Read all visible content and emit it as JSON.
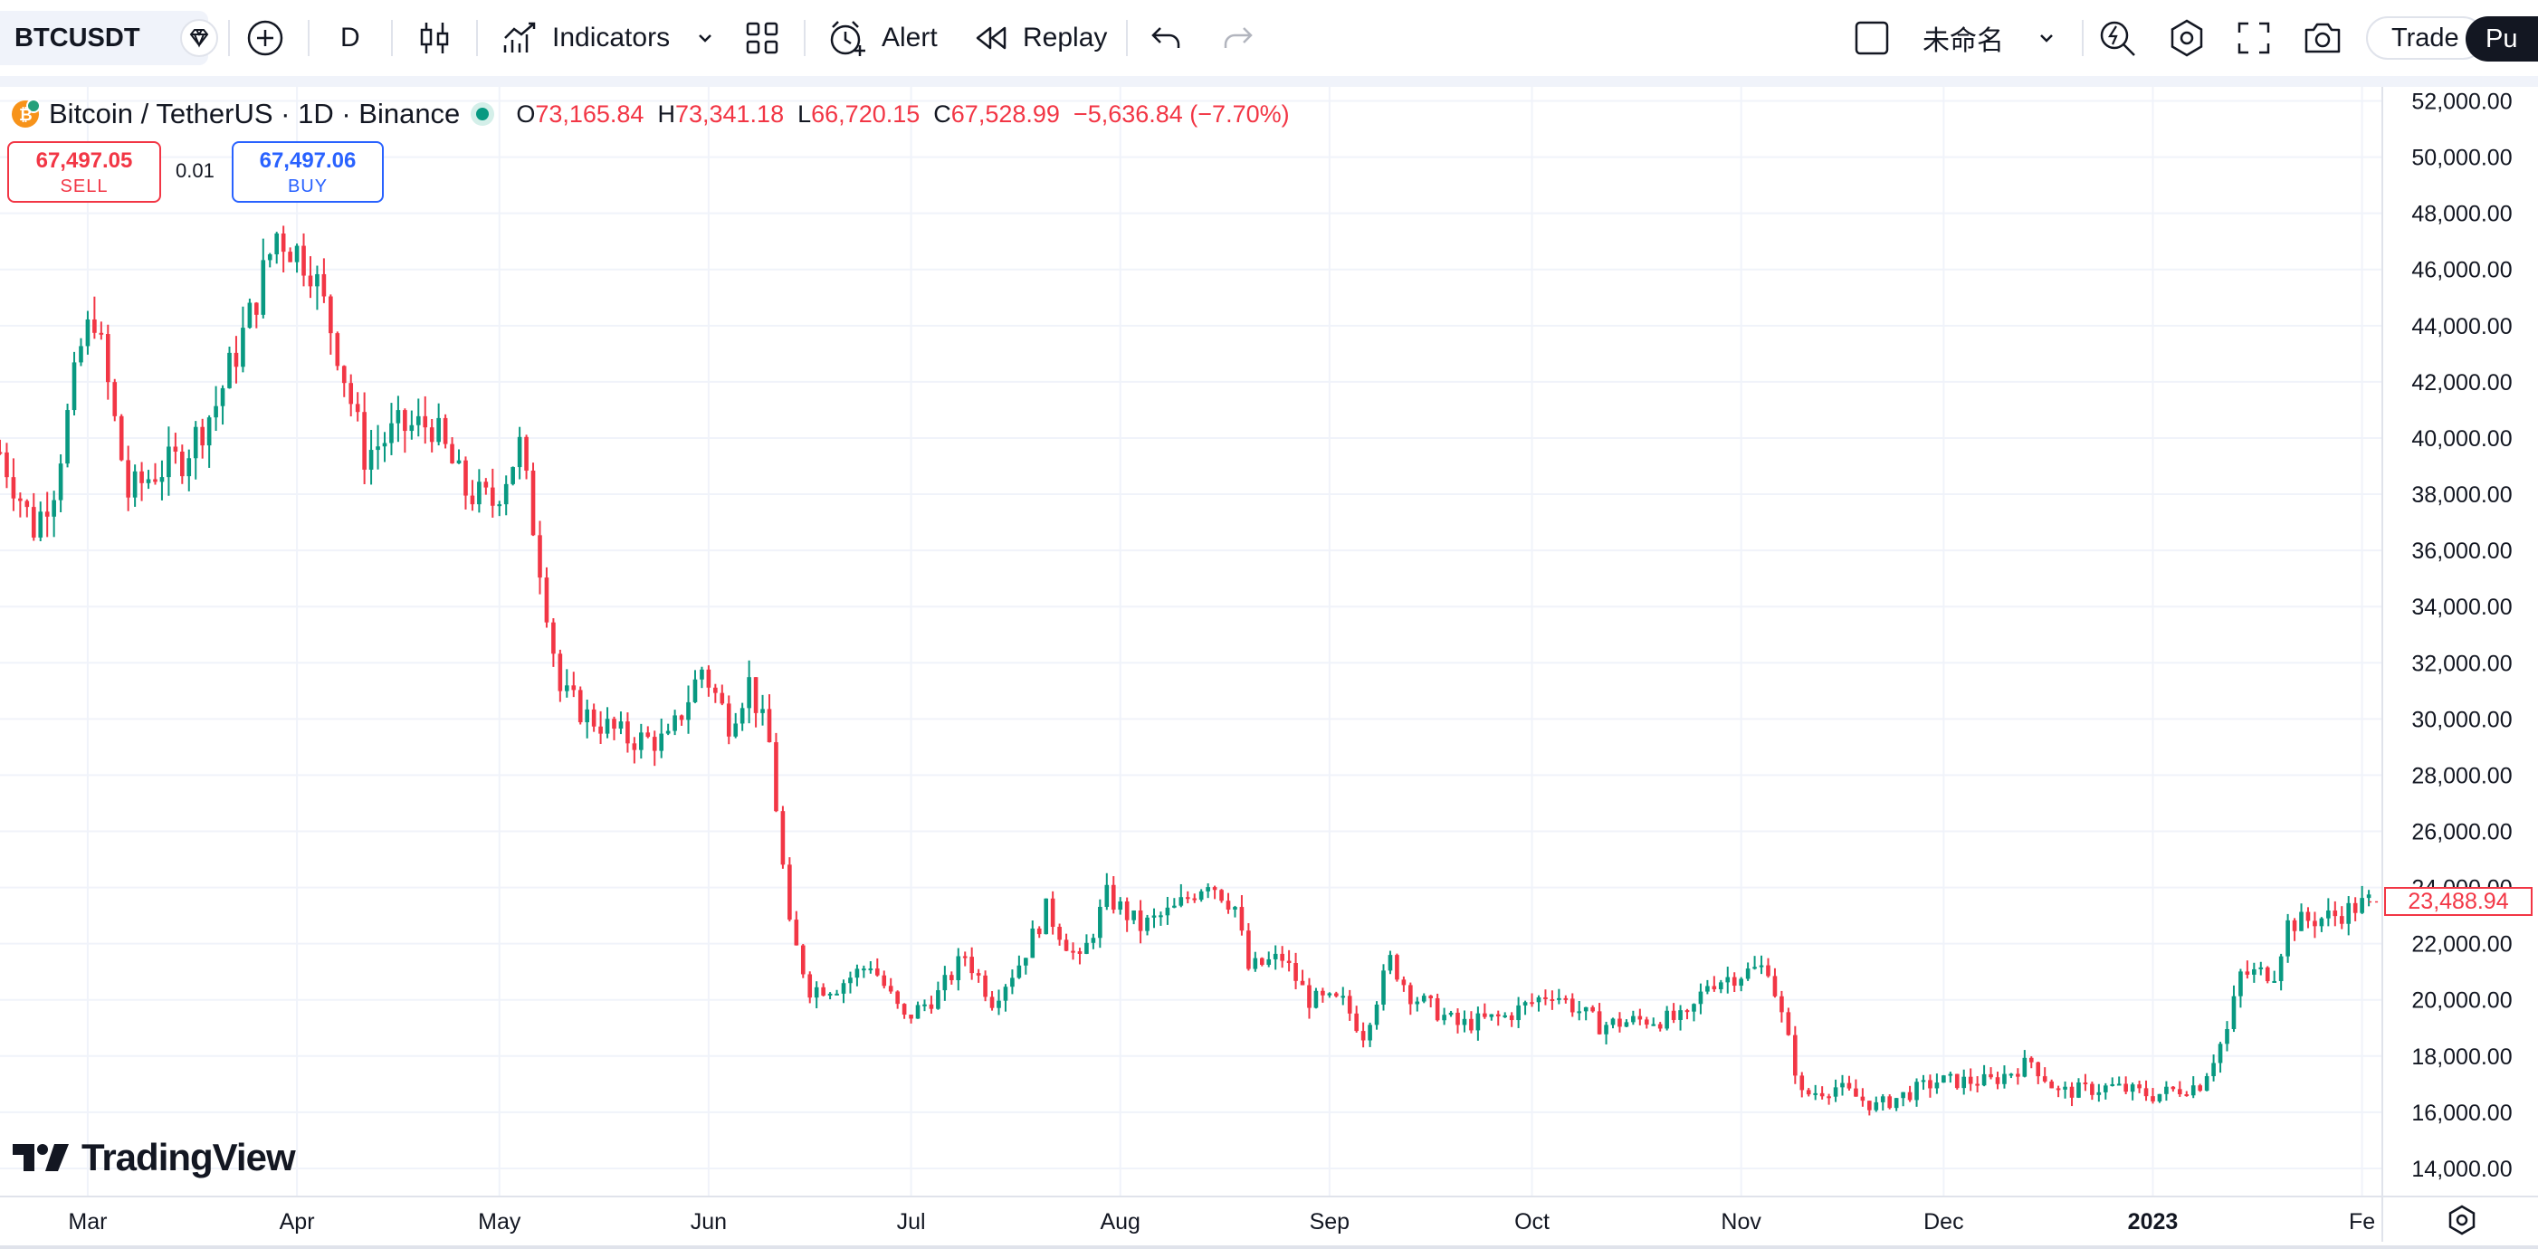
{
  "toolbar": {
    "symbol": "BTCUSDT",
    "interval": "D",
    "indicators_label": "Indicators",
    "alert_label": "Alert",
    "replay_label": "Replay",
    "layout_name": "未命名",
    "trade_label": "Trade",
    "publish_label": "Pu"
  },
  "legend": {
    "title": "Bitcoin / TetherUS · 1D · Binance",
    "open_label": "O",
    "open": "73,165.84",
    "high_label": "H",
    "high": "73,341.18",
    "low_label": "L",
    "low": "66,720.15",
    "close_label": "C",
    "close": "67,528.99",
    "change": "−5,636.84 (−7.70%)"
  },
  "order": {
    "sell_price": "67,497.05",
    "sell_label": "SELL",
    "quantity": "0.01",
    "buy_price": "67,497.06",
    "buy_label": "BUY"
  },
  "chart_data": {
    "type": "candlestick",
    "y_ticks": [
      "14,000.00",
      "16,000.00",
      "18,000.00",
      "20,000.00",
      "22,000.00",
      "24,000.00",
      "26,000.00",
      "28,000.00",
      "30,000.00",
      "32,000.00",
      "34,000.00",
      "36,000.00",
      "38,000.00",
      "40,000.00",
      "42,000.00",
      "44,000.00",
      "46,000.00",
      "48,000.00",
      "50,000.00",
      "52,000.00"
    ],
    "x_ticks": [
      "Mar",
      "Apr",
      "May",
      "Jun",
      "Jul",
      "Aug",
      "Sep",
      "Oct",
      "Nov",
      "Dec",
      "2023",
      "Fe"
    ],
    "last_price": "23,488.94",
    "ylim": [
      13000,
      52500
    ],
    "xlim": [
      "2022-02-16",
      "2023-02-04"
    ],
    "up_color": "#089981",
    "down_color": "#f23645",
    "grid": true,
    "path": [
      [
        "2022-02-16",
        39500
      ],
      [
        "2022-02-21",
        36800
      ],
      [
        "2022-02-24",
        38300
      ],
      [
        "2022-02-28",
        43200
      ],
      [
        "2022-03-02",
        44400
      ],
      [
        "2022-03-07",
        38000
      ],
      [
        "2022-03-11",
        38800
      ],
      [
        "2022-03-15",
        39300
      ],
      [
        "2022-03-20",
        41200
      ],
      [
        "2022-03-25",
        44300
      ],
      [
        "2022-03-29",
        47300
      ],
      [
        "2022-04-03",
        46200
      ],
      [
        "2022-04-07",
        43200
      ],
      [
        "2022-04-11",
        39400
      ],
      [
        "2022-04-16",
        40300
      ],
      [
        "2022-04-21",
        40500
      ],
      [
        "2022-04-26",
        38100
      ],
      [
        "2022-04-30",
        37700
      ],
      [
        "2022-05-04",
        39700
      ],
      [
        "2022-05-07",
        35500
      ],
      [
        "2022-05-10",
        31000
      ],
      [
        "2022-05-14",
        30100
      ],
      [
        "2022-05-20",
        29300
      ],
      [
        "2022-05-26",
        29200
      ],
      [
        "2022-05-31",
        31800
      ],
      [
        "2022-06-04",
        29900
      ],
      [
        "2022-06-07",
        31300
      ],
      [
        "2022-06-10",
        29100
      ],
      [
        "2022-06-13",
        22500
      ],
      [
        "2022-06-16",
        20400
      ],
      [
        "2022-06-20",
        20500
      ],
      [
        "2022-06-25",
        21300
      ],
      [
        "2022-06-30",
        19300
      ],
      [
        "2022-07-05",
        20200
      ],
      [
        "2022-07-09",
        21600
      ],
      [
        "2022-07-13",
        20000
      ],
      [
        "2022-07-17",
        21300
      ],
      [
        "2022-07-21",
        23200
      ],
      [
        "2022-07-26",
        21300
      ],
      [
        "2022-07-30",
        23700
      ],
      [
        "2022-08-04",
        22600
      ],
      [
        "2022-08-09",
        23200
      ],
      [
        "2022-08-14",
        24300
      ],
      [
        "2022-08-18",
        23300
      ],
      [
        "2022-08-20",
        21100
      ],
      [
        "2022-08-25",
        21500
      ],
      [
        "2022-08-29",
        20000
      ],
      [
        "2022-09-03",
        19900
      ],
      [
        "2022-09-06",
        18800
      ],
      [
        "2022-09-10",
        21400
      ],
      [
        "2022-09-13",
        20200
      ],
      [
        "2022-09-20",
        19100
      ],
      [
        "2022-09-27",
        19400
      ],
      [
        "2022-10-04",
        20300
      ],
      [
        "2022-10-11",
        19100
      ],
      [
        "2022-10-18",
        19300
      ],
      [
        "2022-10-24",
        19300
      ],
      [
        "2022-10-27",
        20600
      ],
      [
        "2022-11-05",
        21200
      ],
      [
        "2022-11-08",
        18500
      ],
      [
        "2022-11-10",
        16600
      ],
      [
        "2022-11-15",
        16900
      ],
      [
        "2022-11-21",
        16200
      ],
      [
        "2022-11-30",
        17100
      ],
      [
        "2022-12-08",
        17100
      ],
      [
        "2022-12-14",
        17800
      ],
      [
        "2022-12-18",
        16700
      ],
      [
        "2022-12-26",
        16900
      ],
      [
        "2023-01-01",
        16600
      ],
      [
        "2023-01-08",
        17000
      ],
      [
        "2023-01-12",
        18900
      ],
      [
        "2023-01-14",
        20900
      ],
      [
        "2023-01-19",
        21000
      ],
      [
        "2023-01-21",
        22700
      ],
      [
        "2023-01-28",
        23000
      ],
      [
        "2023-02-02",
        23500
      ]
    ]
  }
}
